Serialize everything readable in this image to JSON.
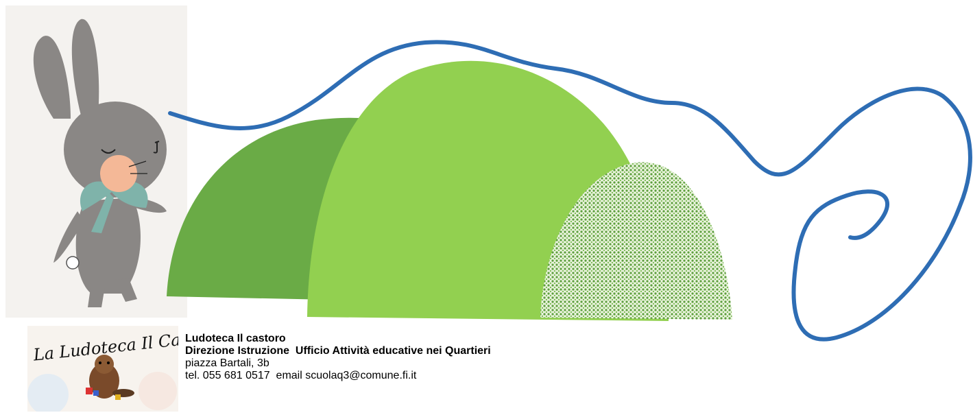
{
  "logo": {
    "text": "La Ludoteca Il Castoro"
  },
  "info": {
    "name": "Ludoteca Il castoro",
    "department": "Direzione Istruzione  Ufficio Attività educative nei Quartieri",
    "address": "piazza Bartali, 3b",
    "contact": "tel. 055 681 0517  email scuolaq3@comune.fi.it"
  },
  "colors": {
    "hill_dark": "#6aab46",
    "hill_light": "#92d050",
    "hill_dotted_bg": "#e9f3dc",
    "hill_dotted_dots": "#5d9e3e",
    "path_line": "#2e6db4",
    "bunny_body": "#8a8785",
    "bunny_bow": "#7fb3aa",
    "bunny_nose": "#f4b897"
  }
}
